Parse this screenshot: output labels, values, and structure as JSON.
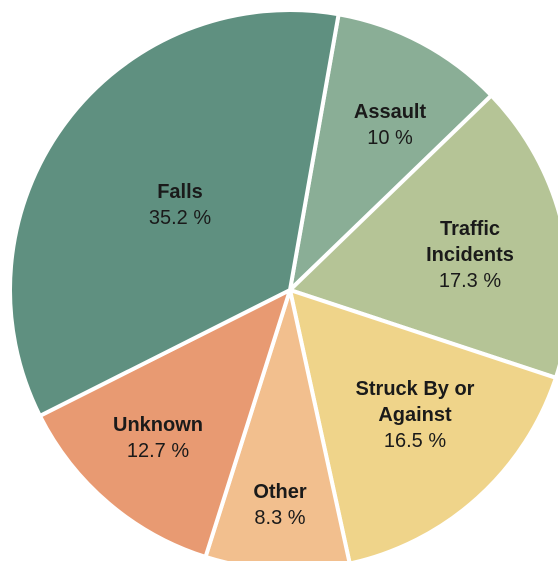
{
  "chart_data": {
    "type": "pie",
    "categories": [
      "Falls",
      "Assault",
      "Traffic Incidents",
      "Struck By or Against",
      "Other",
      "Unknown"
    ],
    "values": [
      35.2,
      10,
      17.3,
      16.5,
      8.3,
      12.7
    ],
    "value_labels": [
      "35.2 %",
      "10 %",
      "17.3 %",
      "16.5 %",
      "8.3 %",
      "12.7 %"
    ],
    "colors": [
      "#5f9080",
      "#8aae96",
      "#b5c496",
      "#efd48a",
      "#f2bf8e",
      "#e89a72"
    ]
  }
}
